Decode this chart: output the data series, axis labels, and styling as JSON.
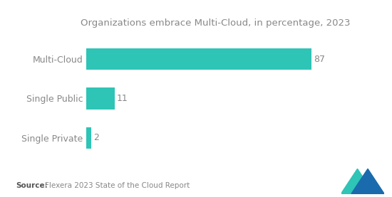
{
  "title": "Organizations embrace Multi-Cloud, in percentage, 2023",
  "categories": [
    "Single Private",
    "Single Public",
    "Multi-Cloud"
  ],
  "values": [
    2,
    11,
    87
  ],
  "bar_color": "#2EC4B6",
  "value_labels": [
    "2",
    "11",
    "87"
  ],
  "source_bold": "Source:",
  "source_text": "Flexera 2023 State of the Cloud Report",
  "xlim": [
    0,
    100
  ],
  "background_color": "#ffffff",
  "title_fontsize": 9.5,
  "label_fontsize": 9,
  "value_fontsize": 9,
  "source_fontsize": 7.5,
  "bar_height": 0.55,
  "logo_teal": "#2EC4B6",
  "logo_blue": "#1A6BAD",
  "label_color": "#888888",
  "title_color": "#888888"
}
